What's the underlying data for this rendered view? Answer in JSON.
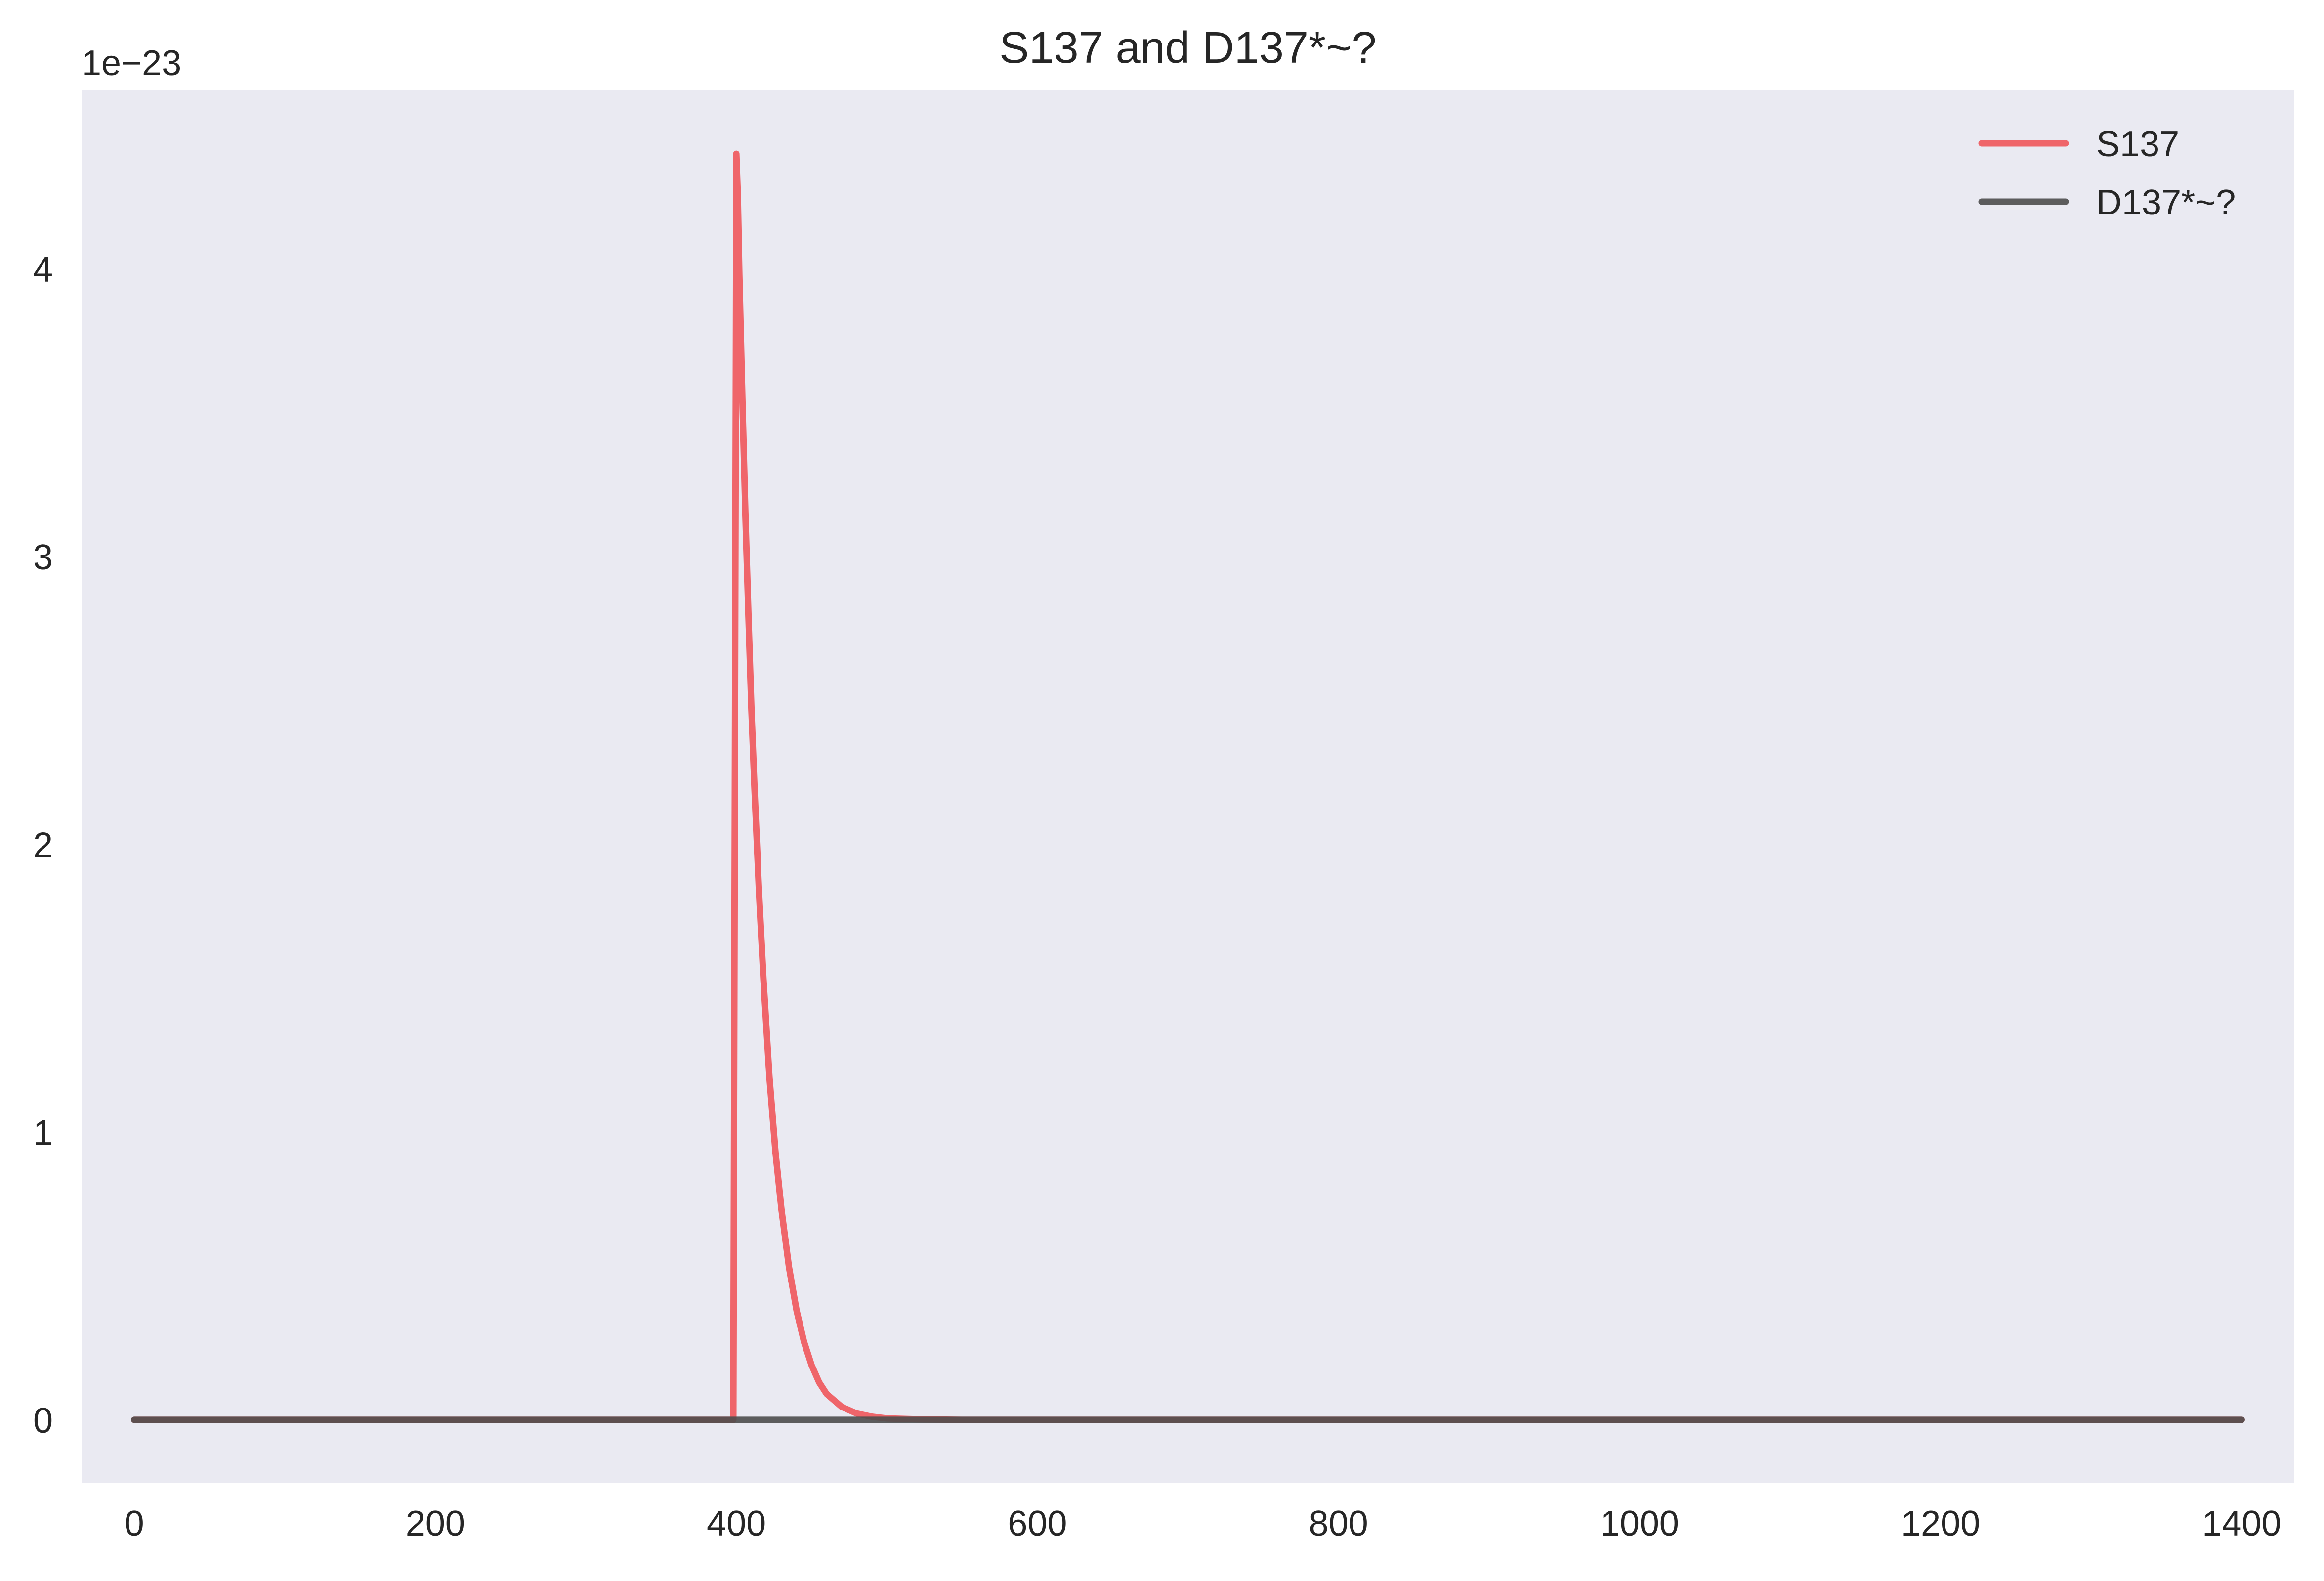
{
  "chart_data": {
    "type": "line",
    "title": "S137 and D137*~?",
    "xlabel": "",
    "ylabel": "",
    "y_offset_label": "1e−23",
    "y_scale_exponent": -23,
    "xlim": [
      -35,
      1435
    ],
    "ylim": [
      -0.22,
      4.62
    ],
    "x_ticks": [
      0,
      200,
      400,
      600,
      800,
      1000,
      1200,
      1400
    ],
    "x_tick_labels": [
      "0",
      "200",
      "400",
      "600",
      "800",
      "1000",
      "1200",
      "1400"
    ],
    "y_ticks": [
      0,
      1,
      2,
      3,
      4
    ],
    "y_tick_labels": [
      "0",
      "1",
      "2",
      "3",
      "4"
    ],
    "grid": false,
    "legend_position": "top-right",
    "background_color": "#eaeaf2",
    "series": [
      {
        "name": "S137",
        "color": "#f0575b",
        "x": [
          0,
          396,
          398,
          400,
          401,
          402,
          404,
          406,
          408,
          410,
          412,
          415,
          418,
          422,
          426,
          430,
          435,
          440,
          445,
          450,
          455,
          460,
          470,
          480,
          490,
          500,
          520,
          550,
          600,
          800,
          1000,
          1200,
          1400
        ],
        "values": [
          0,
          0,
          0,
          4.4,
          4.25,
          3.98,
          3.55,
          3.15,
          2.8,
          2.47,
          2.2,
          1.84,
          1.53,
          1.19,
          0.93,
          0.73,
          0.53,
          0.38,
          0.27,
          0.19,
          0.13,
          0.09,
          0.045,
          0.022,
          0.011,
          0.005,
          0.002,
          0,
          0,
          0,
          0,
          0,
          0
        ]
      },
      {
        "name": "D137*~?",
        "color": "#4d4d4d",
        "x": [
          0,
          200,
          400,
          600,
          800,
          1000,
          1200,
          1400
        ],
        "values": [
          0,
          0,
          0,
          0,
          0,
          0,
          0,
          0
        ]
      }
    ]
  }
}
